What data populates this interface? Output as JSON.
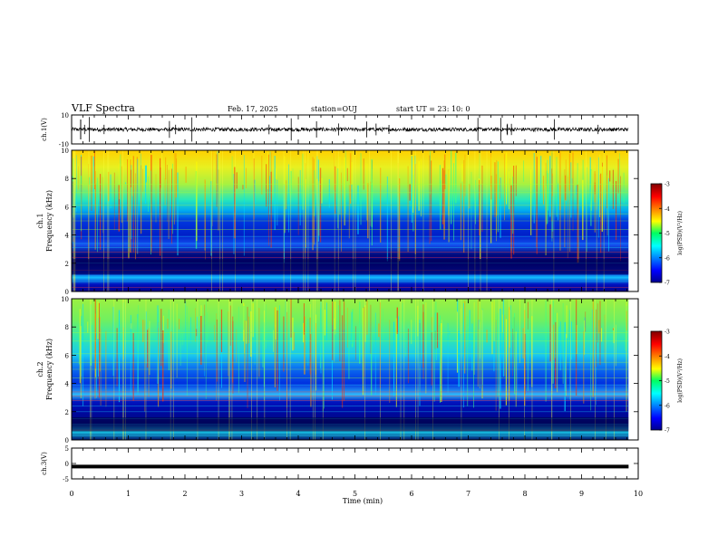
{
  "header": {
    "title": "VLF Spectra",
    "date": "Feb. 17, 2025",
    "station": "station=OUJ",
    "start": "start  UT  =   23: 10: 0"
  },
  "chart_data": [
    {
      "type": "line",
      "name": "ch1-waveform",
      "ylabel": "ch.1(V)",
      "ylim": [
        -10,
        10
      ],
      "yticks": [
        "10",
        "-10"
      ],
      "xlim": [
        0,
        10
      ],
      "x_extent": 9.83,
      "baseline": 0,
      "color": "#000000"
    },
    {
      "type": "heatmap",
      "name": "ch1-spectrogram",
      "ylabel": "ch.1\nFrequency (kHz)",
      "ylim": [
        0,
        10
      ],
      "yticks": [
        0,
        2,
        4,
        6,
        8,
        10
      ],
      "xlim": [
        0,
        10
      ],
      "x_extent": 9.83,
      "colorbar": {
        "label": "log(PSD)(V²/Hz)",
        "range": [
          -7,
          -3
        ],
        "ticks": [
          -3,
          -4,
          -5,
          -6,
          -7
        ]
      }
    },
    {
      "type": "heatmap",
      "name": "ch2-spectrogram",
      "ylabel": "ch.2\nFrequency (kHz)",
      "ylim": [
        0,
        10
      ],
      "yticks": [
        0,
        2,
        4,
        6,
        8,
        10
      ],
      "xlim": [
        0,
        10
      ],
      "x_extent": 9.83,
      "colorbar": {
        "label": "log(PSD)(V²/Hz)",
        "range": [
          -7,
          -3
        ],
        "ticks": [
          -3,
          -4,
          -5,
          -6,
          -7
        ]
      }
    },
    {
      "type": "line",
      "name": "ch3-waveform",
      "ylabel": "ch.3(V)",
      "ylim": [
        -5,
        5
      ],
      "yticks": [
        "5",
        "0",
        "-5"
      ],
      "xlim": [
        0,
        10
      ],
      "x_extent": 9.83,
      "baseline": -1,
      "color": "#000000"
    }
  ],
  "xaxis": {
    "label": "Time (min)",
    "ticks": [
      "0",
      "1",
      "2",
      "3",
      "4",
      "5",
      "6",
      "7",
      "8",
      "9",
      "10"
    ]
  }
}
